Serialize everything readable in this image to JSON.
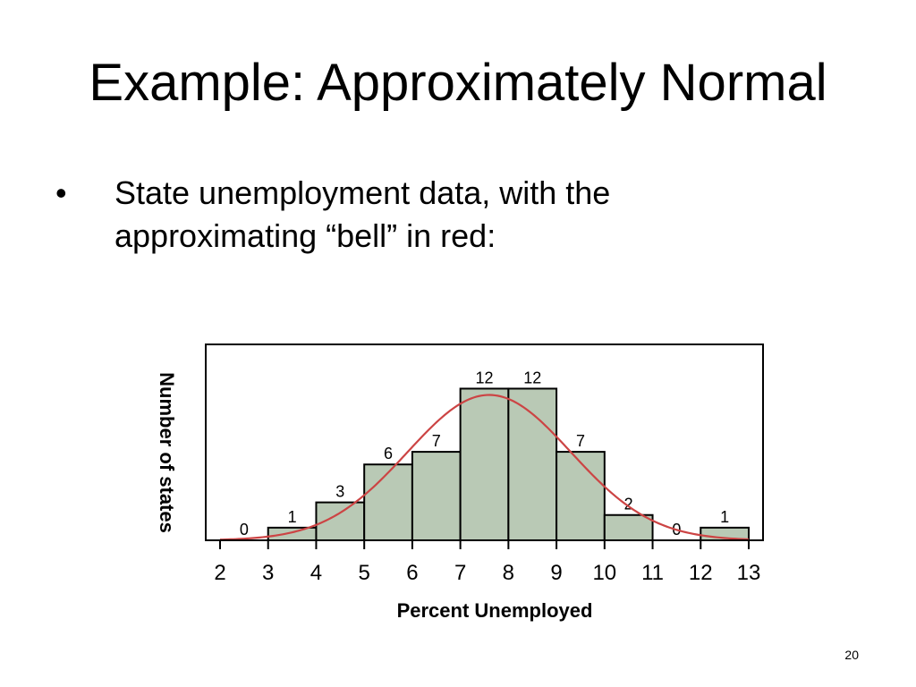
{
  "slide": {
    "title": "Example: Approximately Normal",
    "bullet_symbol": "•",
    "bullet_lines": [
      "State unemployment data, with the",
      "approximating “bell” in red:"
    ],
    "page_number": "20"
  },
  "chart_data": {
    "type": "bar",
    "title": "",
    "xlabel": "Percent Unemployed",
    "ylabel": "Number of states",
    "x_ticks": [
      "2",
      "3",
      "4",
      "5",
      "6",
      "7",
      "8",
      "9",
      "10",
      "11",
      "12",
      "13"
    ],
    "bins": [
      {
        "start": 2,
        "end": 3,
        "value": 0,
        "label": "0"
      },
      {
        "start": 3,
        "end": 4,
        "value": 1,
        "label": "1"
      },
      {
        "start": 4,
        "end": 5,
        "value": 3,
        "label": "3"
      },
      {
        "start": 5,
        "end": 6,
        "value": 6,
        "label": "6"
      },
      {
        "start": 6,
        "end": 7,
        "value": 7,
        "label": "7"
      },
      {
        "start": 7,
        "end": 8,
        "value": 12,
        "label": "12"
      },
      {
        "start": 8,
        "end": 9,
        "value": 12,
        "label": "12"
      },
      {
        "start": 9,
        "end": 10,
        "value": 7,
        "label": "7"
      },
      {
        "start": 10,
        "end": 11,
        "value": 2,
        "label": "2"
      },
      {
        "start": 11,
        "end": 12,
        "value": 0,
        "label": "0"
      },
      {
        "start": 12,
        "end": 13,
        "value": 1,
        "label": "1"
      }
    ],
    "curve": {
      "type": "normal",
      "mean": 7.6,
      "sd": 1.7,
      "peak": 11.5
    },
    "xlim": [
      2,
      13
    ],
    "ylim": [
      0,
      15.5
    ],
    "grid": false,
    "colors": {
      "bar_fill": "#b9c9b5",
      "bar_stroke": "#000000",
      "curve": "#cc4444"
    }
  }
}
